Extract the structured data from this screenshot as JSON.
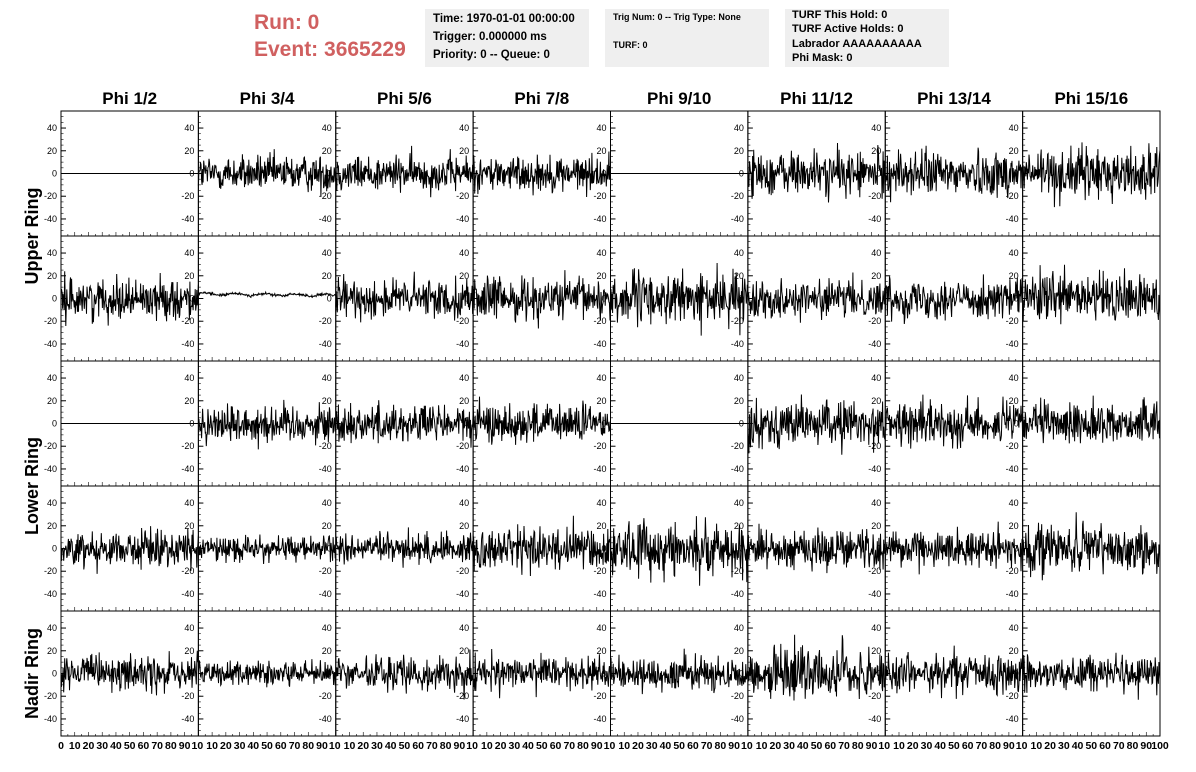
{
  "header": {
    "run_label": "Run:    0",
    "event_label": "Event: 3665229"
  },
  "info_time": {
    "time": "Time: 1970-01-01 00:00:00",
    "trigger": "Trigger: 0.000000 ms",
    "priority": "Priority: 0 -- Queue: 0"
  },
  "info_trig": {
    "trig": "Trig Num: 0 -- Trig Type: None",
    "turf": "TURF: 0"
  },
  "info_turf": {
    "this_hold": "TURF This Hold: 0",
    "active_holds": "TURF Active Holds: 0",
    "labrador": "Labrador AAAAAAAAAA",
    "phi_mask": "Phi Mask: 0"
  },
  "colors": {
    "header_text": "#d06060",
    "info_background": "#efefef",
    "trace": "#000000"
  },
  "chart_data": {
    "type": "line",
    "layout": "grid of waveform panels, 5 rows x 8 columns, shared axes",
    "column_titles": [
      "Phi 1/2",
      "Phi 3/4",
      "Phi 5/6",
      "Phi 7/8",
      "Phi 9/10",
      "Phi 11/12",
      "Phi 13/14",
      "Phi 15/16"
    ],
    "row_titles": [
      {
        "label": "Upper Ring",
        "spans_rows": [
          0,
          1
        ]
      },
      {
        "label": "Lower Ring",
        "spans_rows": [
          2,
          3
        ]
      },
      {
        "label": "Nadir Ring",
        "spans_rows": [
          4
        ]
      }
    ],
    "xlim": [
      0,
      100
    ],
    "ylim": [
      -55,
      55
    ],
    "y_ticks": [
      -40,
      -20,
      0,
      20,
      40
    ],
    "x_tick_labels": [
      "0",
      "10",
      "20",
      "30",
      "40",
      "50",
      "60",
      "70",
      "80",
      "90",
      "100"
    ],
    "x_axis_label_text": "0 10 20 30 40 50 60 70 80 90 10 10 20 30 40 50 60 70 80 90 10 10 20 30 40 50 60 70 80 90 10 10 20 30 40 50 60 70 80 90 10 10 20 30 40 50 60 70 80 90 10 10 20 30 40 50 60 70 80 90 10 10 20 30 40 50 60 70 80 90 10 10 20 30 40 50 60 70 80 90 100",
    "samples_per_trace": 260,
    "panels": [
      [
        {
          "kind": "flat",
          "amp": 0
        },
        {
          "kind": "noise",
          "amp": 12
        },
        {
          "kind": "noise",
          "amp": 12
        },
        {
          "kind": "noise",
          "amp": 12
        },
        {
          "kind": "flat",
          "amp": 0
        },
        {
          "kind": "noise",
          "amp": 15
        },
        {
          "kind": "noise",
          "amp": 15
        },
        {
          "kind": "noise",
          "amp": 17
        }
      ],
      [
        {
          "kind": "noise",
          "amp": 13
        },
        {
          "kind": "smooth",
          "amp": 2
        },
        {
          "kind": "noise",
          "amp": 13
        },
        {
          "kind": "noise",
          "amp": 14
        },
        {
          "kind": "noise",
          "amp": 17
        },
        {
          "kind": "noise",
          "amp": 12
        },
        {
          "kind": "noise",
          "amp": 13
        },
        {
          "kind": "noise",
          "amp": 17
        }
      ],
      [
        {
          "kind": "flat",
          "amp": 0
        },
        {
          "kind": "noise",
          "amp": 13
        },
        {
          "kind": "noise",
          "amp": 13
        },
        {
          "kind": "noise",
          "amp": 13
        },
        {
          "kind": "flat",
          "amp": 0
        },
        {
          "kind": "noise",
          "amp": 15
        },
        {
          "kind": "noise",
          "amp": 14
        },
        {
          "kind": "noise",
          "amp": 13
        }
      ],
      [
        {
          "kind": "noise",
          "amp": 12
        },
        {
          "kind": "noise",
          "amp": 8
        },
        {
          "kind": "noise",
          "amp": 10
        },
        {
          "kind": "noise",
          "amp": 15
        },
        {
          "kind": "noise",
          "amp": 18
        },
        {
          "kind": "noise",
          "amp": 13
        },
        {
          "kind": "noise",
          "amp": 12
        },
        {
          "kind": "noise",
          "amp": 16
        }
      ],
      [
        {
          "kind": "noise",
          "amp": 12
        },
        {
          "kind": "noise",
          "amp": 9
        },
        {
          "kind": "noise",
          "amp": 11
        },
        {
          "kind": "noise",
          "amp": 11
        },
        {
          "kind": "noise",
          "amp": 11
        },
        {
          "kind": "noise",
          "amp": 18
        },
        {
          "kind": "noise",
          "amp": 13
        },
        {
          "kind": "noise",
          "amp": 12
        }
      ]
    ]
  }
}
